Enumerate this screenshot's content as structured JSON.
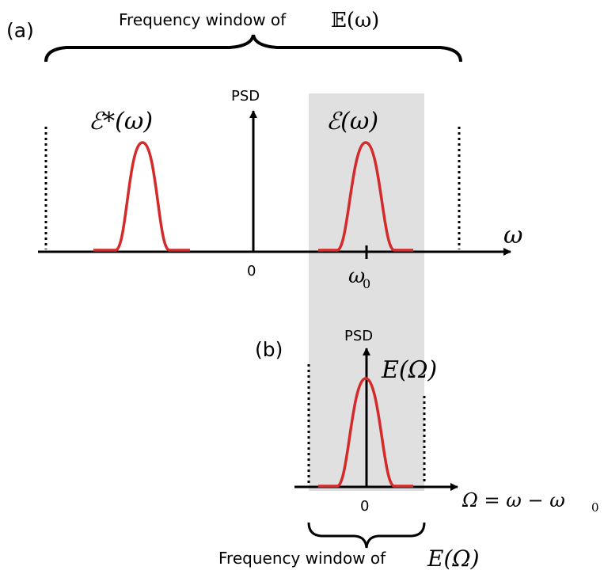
{
  "panel_a": {
    "label": "(a)",
    "window_caption": "Frequency window of",
    "window_symbol": "𝔼(ω)",
    "axis_y_label": "PSD",
    "axis_x_label": "ω",
    "origin_tick": "0",
    "center_tick": "ω",
    "center_tick_sub": "0",
    "peak_left_label": "ℰ*(ω)",
    "peak_right_label": "ℰ(ω)"
  },
  "panel_b": {
    "label": "(b)",
    "axis_y_label": "PSD",
    "axis_x_label": "Ω = ω − ω",
    "axis_x_label_sub": "0",
    "origin_tick": "0",
    "peak_label": "E(Ω)",
    "window_caption": "Frequency window of",
    "window_symbol": "E(Ω)"
  },
  "colors": {
    "curve": "#d42a2a",
    "highlight": "#e0e0e0",
    "ink": "#000000"
  }
}
